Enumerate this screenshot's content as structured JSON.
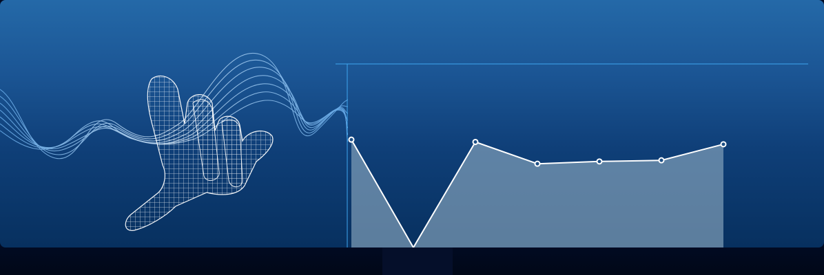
{
  "hero": {
    "art_icon": "wireframe-hand-icon",
    "wave_icon": "sound-wave-icon"
  },
  "colors": {
    "bg_top": "#2469a8",
    "bg_bottom": "#07305f",
    "axis": "#3ea6f0",
    "line": "#ffffff",
    "area_fill": "#8aa8bf",
    "footer": "#020b24"
  },
  "chart_data": {
    "type": "area",
    "x": [
      1,
      2,
      3,
      4,
      5,
      6,
      7
    ],
    "values": [
      9.4,
      0,
      9.2,
      7.3,
      7.5,
      7.6,
      9.0
    ],
    "ylim": [
      0,
      16
    ],
    "markers": true,
    "grid": false
  }
}
